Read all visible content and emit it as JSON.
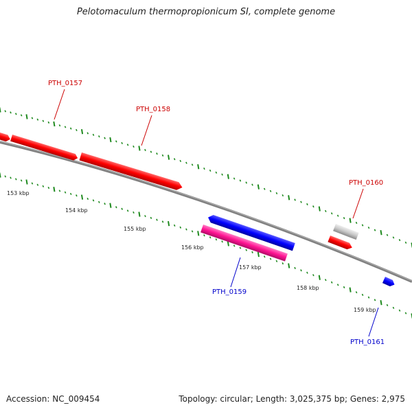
{
  "title": "Pelotomaculum thermopropionicum SI, complete genome",
  "footer": {
    "accession": "Accession: NC_009454",
    "summary": "Topology: circular; Length: 3,025,375 bp; Genes: 2,975"
  },
  "colors": {
    "backbone": "#808080",
    "ticks": "#1f8a1f",
    "forward_gene": "#ff0000",
    "reverse_gene": "#0000ff",
    "pink_gene": "#ff1493",
    "grey_gene": "#c8c8c8",
    "label_red": "#cc0000",
    "label_blue": "#0000cc"
  },
  "scale_labels": [
    "153 kbp",
    "154 kbp",
    "155 kbp",
    "156 kbp",
    "157 kbp",
    "158 kbp",
    "159 kbp"
  ],
  "genes": [
    {
      "id": "g0",
      "label": "",
      "color": "forward_gene",
      "strand": "+"
    },
    {
      "id": "PTH_0157",
      "label": "PTH_0157",
      "color": "forward_gene",
      "strand": "+"
    },
    {
      "id": "PTH_0158",
      "label": "PTH_0158",
      "color": "forward_gene",
      "strand": "+"
    },
    {
      "id": "PTH_0159_blue",
      "label": "",
      "color": "reverse_gene",
      "strand": "-"
    },
    {
      "id": "PTH_0159",
      "label": "PTH_0159",
      "color": "pink_gene",
      "strand": "+"
    },
    {
      "id": "PTH_0160_grey",
      "label": "",
      "color": "grey_gene",
      "strand": "+"
    },
    {
      "id": "PTH_0160",
      "label": "PTH_0160",
      "color": "forward_gene",
      "strand": "+"
    },
    {
      "id": "PTH_0161",
      "label": "PTH_0161",
      "color": "reverse_gene",
      "strand": "+"
    }
  ]
}
